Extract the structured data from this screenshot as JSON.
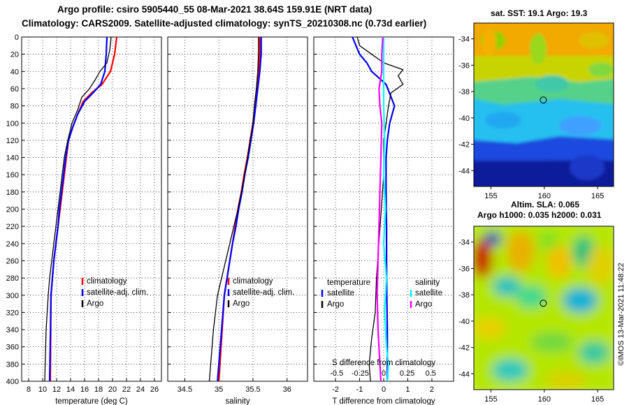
{
  "header": {
    "line1": "Argo profile: csiro 5905440_55 08-Mar-2021 38.64S 159.91E (NRT data)",
    "line2": "Climatology: CARS2009. Satellite-adjusted climatology: synTS_20210308.nc (0.73d earlier)"
  },
  "credit": "©IMOS 13-Mar-2021 11:48:22",
  "colors": {
    "climatology": "#ff0000",
    "satellite": "#0000ff",
    "argo": "#000000",
    "sal_satellite": "#00ffff",
    "sal_argo": "#ff00ff"
  },
  "chart_data": [
    {
      "type": "line",
      "id": "temperature",
      "xlabel": "temperature (deg C)",
      "ylabel": "depth",
      "xlim": [
        7,
        27
      ],
      "ylim": [
        400,
        0
      ],
      "xticks": [
        "8",
        "10",
        "12",
        "14",
        "16",
        "18",
        "20",
        "22",
        "24",
        "26"
      ],
      "xtick_values": [
        8,
        10,
        12,
        14,
        16,
        18,
        20,
        22,
        24,
        26
      ],
      "yticks": [
        "0",
        "20",
        "40",
        "60",
        "80",
        "100",
        "120",
        "140",
        "160",
        "180",
        "200",
        "220",
        "240",
        "260",
        "280",
        "300",
        "320",
        "340",
        "360",
        "380",
        "400"
      ],
      "legend": [
        "climatology",
        "satellite-adj. clim.",
        "Argo"
      ],
      "series": [
        {
          "name": "climatology",
          "color": "#ff0000",
          "x": [
            20.6,
            20.3,
            20.0,
            19.7,
            18.5,
            17.0,
            15.8,
            15.0,
            14.3,
            13.7,
            13.4,
            13.1,
            12.8,
            12.5,
            12.2,
            11.9,
            11.6,
            11.4,
            11.2,
            11.1
          ],
          "y": [
            0,
            20,
            30,
            40,
            55,
            65,
            75,
            90,
            105,
            120,
            140,
            160,
            180,
            200,
            220,
            240,
            260,
            280,
            300,
            400
          ]
        },
        {
          "name": "satellite-adj. clim.",
          "color": "#0000ff",
          "x": [
            19.2,
            19.1,
            19.0,
            18.9,
            18.3,
            17.2,
            16.0,
            15.0,
            14.3,
            13.7,
            13.3,
            13.0,
            12.7,
            12.4,
            12.2,
            11.9,
            11.6,
            11.4,
            11.2,
            11.0
          ],
          "y": [
            0,
            20,
            30,
            40,
            55,
            65,
            75,
            90,
            105,
            120,
            140,
            160,
            180,
            200,
            220,
            240,
            260,
            280,
            300,
            400
          ]
        },
        {
          "name": "Argo",
          "color": "#000000",
          "x": [
            19.8,
            19.6,
            19.2,
            18.2,
            17.5,
            16.7,
            15.6,
            15.0,
            14.2,
            13.6,
            13.1,
            12.8,
            12.5,
            12.2,
            11.9,
            11.6,
            11.3,
            11.0,
            10.8,
            10.5,
            10.3
          ],
          "y": [
            0,
            15,
            30,
            40,
            50,
            60,
            70,
            85,
            100,
            120,
            140,
            160,
            180,
            200,
            220,
            240,
            260,
            280,
            300,
            340,
            400
          ]
        }
      ]
    },
    {
      "type": "line",
      "id": "salinity",
      "xlabel": "salinity",
      "xlim": [
        34.25,
        36.3
      ],
      "ylim": [
        400,
        0
      ],
      "xticks": [
        "34.5",
        "35",
        "35.5",
        "36"
      ],
      "xtick_values": [
        34.5,
        35,
        35.5,
        36
      ],
      "legend": [
        "climatology",
        "satellite-adj. clim.",
        "Argo"
      ],
      "series": [
        {
          "name": "climatology",
          "color": "#ff0000",
          "x": [
            35.6,
            35.6,
            35.58,
            35.56,
            35.53,
            35.5,
            35.46,
            35.42,
            35.37,
            35.33,
            35.28,
            35.24,
            35.2,
            35.16,
            35.12,
            35.08,
            35.0
          ],
          "y": [
            0,
            20,
            40,
            60,
            80,
            100,
            120,
            140,
            160,
            180,
            200,
            220,
            240,
            260,
            280,
            300,
            400
          ]
        },
        {
          "name": "satellite-adj. clim.",
          "color": "#0000ff",
          "x": [
            35.62,
            35.62,
            35.6,
            35.57,
            35.54,
            35.51,
            35.47,
            35.43,
            35.38,
            35.34,
            35.29,
            35.25,
            35.2,
            35.16,
            35.12,
            35.08,
            34.98
          ],
          "y": [
            0,
            20,
            40,
            60,
            80,
            100,
            120,
            140,
            160,
            180,
            200,
            220,
            240,
            260,
            280,
            300,
            400
          ]
        },
        {
          "name": "Argo",
          "color": "#000000",
          "x": [
            35.58,
            35.58,
            35.57,
            35.55,
            35.52,
            35.5,
            35.46,
            35.42,
            35.38,
            35.33,
            35.28,
            35.22,
            35.16,
            35.1,
            35.04,
            34.98,
            34.92,
            34.86
          ],
          "y": [
            0,
            20,
            40,
            60,
            80,
            100,
            120,
            140,
            160,
            180,
            200,
            220,
            240,
            260,
            280,
            300,
            340,
            400
          ]
        }
      ]
    },
    {
      "type": "line",
      "id": "difference",
      "xlabel": "T difference from climatology",
      "top_xlabel": "S difference from climatology",
      "xlim": [
        -2.9,
        2.9
      ],
      "ylim": [
        400,
        0
      ],
      "xticks": [
        "-2",
        "-1",
        "0",
        "1",
        "2"
      ],
      "xtick_values": [
        -2,
        -1,
        0,
        1,
        2
      ],
      "top_xticks": [
        "-0.5",
        "-0.25",
        "0",
        "0.25",
        "0.5"
      ],
      "top_xtick_values": [
        -0.5,
        -0.25,
        0,
        0.25,
        0.5
      ],
      "legend_temperature_title": "temperature",
      "legend_salinity_title": "salinity",
      "legend_temperature": [
        "satellite",
        "Argo"
      ],
      "legend_salinity": [
        "satellite",
        "Argo"
      ],
      "series": [
        {
          "name": "T satellite",
          "color": "#0000ff",
          "x": [
            -1.3,
            -1.0,
            -0.7,
            -0.5,
            0.1,
            0.45,
            0.25,
            0.15,
            0.1,
            0.1,
            0.12,
            0.12,
            0.13,
            0.15,
            0.15
          ],
          "y": [
            0,
            20,
            30,
            40,
            55,
            80,
            100,
            120,
            140,
            180,
            220,
            260,
            300,
            340,
            400
          ]
        },
        {
          "name": "T Argo",
          "color": "#000000",
          "x": [
            -1.1,
            -1.0,
            -0.5,
            0.0,
            0.8,
            0.6,
            0.8,
            0.3,
            0.2,
            0.1,
            0.0,
            0.0,
            -0.1,
            -0.2,
            -0.3,
            -0.35,
            -0.5,
            -0.6,
            -0.55
          ],
          "y": [
            0,
            10,
            20,
            30,
            38,
            45,
            55,
            65,
            80,
            100,
            120,
            160,
            200,
            240,
            280,
            320,
            350,
            380,
            400
          ]
        },
        {
          "name": "S satellite",
          "color": "#00ffff",
          "x": [
            0.0,
            0.0,
            0.0,
            0.01,
            0.0,
            0.02,
            0.0,
            0.03,
            0.01,
            0.03,
            0.05,
            0.04
          ],
          "y": [
            0,
            40,
            80,
            120,
            160,
            200,
            240,
            280,
            320,
            360,
            380,
            400
          ]
        },
        {
          "name": "S Argo",
          "color": "#ff00ff",
          "x": [
            -0.01,
            -0.02,
            -0.02,
            -0.05,
            -0.04,
            -0.02,
            -0.03,
            -0.04,
            -0.05,
            -0.06,
            -0.07,
            -0.06,
            -0.04,
            -0.03
          ],
          "y": [
            0,
            20,
            40,
            60,
            80,
            100,
            140,
            180,
            220,
            260,
            300,
            340,
            380,
            400
          ]
        }
      ]
    }
  ],
  "map_sst": {
    "title": "sat. SST: 19.1 Argo: 19.3",
    "yticks": [
      "-34",
      "-36",
      "-38",
      "-40",
      "-42",
      "-44"
    ],
    "ytick_values": [
      -34,
      -36,
      -38,
      -40,
      -42,
      -44
    ],
    "xticks": [
      "155",
      "160",
      "165"
    ],
    "xtick_values": [
      155,
      160,
      165
    ],
    "lon_range": [
      153.4,
      166.5
    ],
    "lat_range": [
      -32.8,
      -45.2
    ],
    "argo_position": {
      "lon": 159.91,
      "lat": -38.64
    }
  },
  "map_sla": {
    "title1": "Altim. SLA: 0.065",
    "title2": "Argo h1000: 0.035 h2000: 0.031",
    "yticks": [
      "-34",
      "-36",
      "-38",
      "-40",
      "-42",
      "-44"
    ],
    "ytick_values": [
      -34,
      -36,
      -38,
      -40,
      -42,
      -44
    ],
    "xticks": [
      "155",
      "160",
      "165"
    ],
    "xtick_values": [
      155,
      160,
      165
    ],
    "lon_range": [
      153.4,
      166.5
    ],
    "lat_range": [
      -32.8,
      -45.2
    ],
    "argo_position": {
      "lon": 159.91,
      "lat": -38.64
    }
  }
}
